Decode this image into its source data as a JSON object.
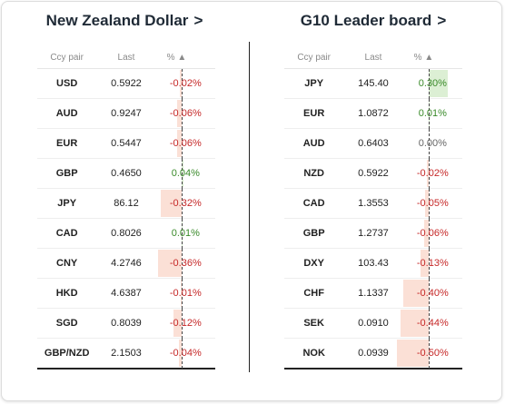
{
  "left_panel": {
    "title": "New Zealand Dollar",
    "title_chevron": ">",
    "headers": {
      "pair": "Ccy pair",
      "last": "Last",
      "pct": "% ▲"
    },
    "rows": [
      {
        "pair": "USD",
        "last": "0.5922",
        "pct": "-0.02%",
        "change": -0.02
      },
      {
        "pair": "AUD",
        "last": "0.9247",
        "pct": "-0.06%",
        "change": -0.06
      },
      {
        "pair": "EUR",
        "last": "0.5447",
        "pct": "-0.06%",
        "change": -0.06
      },
      {
        "pair": "GBP",
        "last": "0.4650",
        "pct": "0.04%",
        "change": 0.04
      },
      {
        "pair": "JPY",
        "last": "86.12",
        "pct": "-0.32%",
        "change": -0.32
      },
      {
        "pair": "CAD",
        "last": "0.8026",
        "pct": "0.01%",
        "change": 0.01
      },
      {
        "pair": "CNY",
        "last": "4.2746",
        "pct": "-0.36%",
        "change": -0.36
      },
      {
        "pair": "HKD",
        "last": "4.6387",
        "pct": "-0.01%",
        "change": -0.01
      },
      {
        "pair": "SGD",
        "last": "0.8039",
        "pct": "-0.12%",
        "change": -0.12
      },
      {
        "pair": "GBP/NZD",
        "last": "2.1503",
        "pct": "-0.04%",
        "change": -0.04
      }
    ]
  },
  "right_panel": {
    "title": "G10 Leader board",
    "title_chevron": ">",
    "headers": {
      "pair": "Ccy pair",
      "last": "Last",
      "pct": "% ▲"
    },
    "rows": [
      {
        "pair": "JPY",
        "last": "145.40",
        "pct": "0.30%",
        "change": 0.3
      },
      {
        "pair": "EUR",
        "last": "1.0872",
        "pct": "0.01%",
        "change": 0.01
      },
      {
        "pair": "AUD",
        "last": "0.6403",
        "pct": "0.00%",
        "change": 0.0
      },
      {
        "pair": "NZD",
        "last": "0.5922",
        "pct": "-0.02%",
        "change": -0.02
      },
      {
        "pair": "CAD",
        "last": "1.3553",
        "pct": "-0.05%",
        "change": -0.05
      },
      {
        "pair": "GBP",
        "last": "1.2737",
        "pct": "-0.06%",
        "change": -0.06
      },
      {
        "pair": "DXY",
        "last": "103.43",
        "pct": "-0.13%",
        "change": -0.13
      },
      {
        "pair": "CHF",
        "last": "1.1337",
        "pct": "-0.40%",
        "change": -0.4
      },
      {
        "pair": "SEK",
        "last": "0.0910",
        "pct": "-0.44%",
        "change": -0.44
      },
      {
        "pair": "NOK",
        "last": "0.0939",
        "pct": "-0.50%",
        "change": -0.5
      }
    ]
  },
  "colors": {
    "negative_text": "#c62828",
    "positive_text": "#3a8a2a",
    "negative_bar": "#fbe0d6",
    "positive_bar": "#dcefd4"
  }
}
